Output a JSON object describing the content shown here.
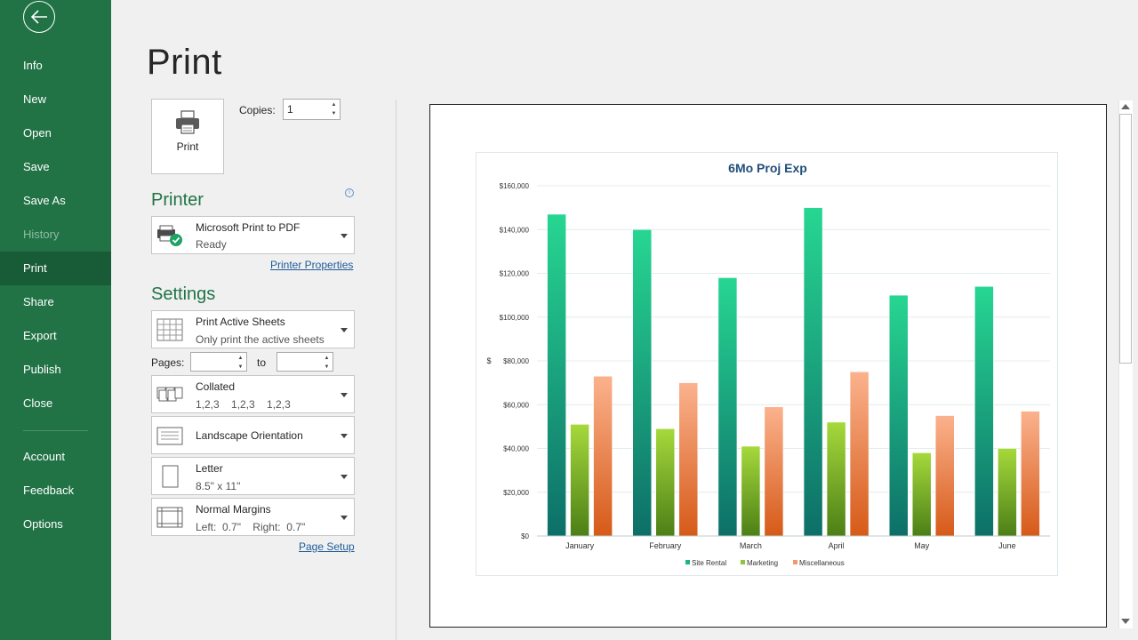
{
  "nav": {
    "items": [
      {
        "label": "Info",
        "state": "normal"
      },
      {
        "label": "New",
        "state": "normal"
      },
      {
        "label": "Open",
        "state": "normal"
      },
      {
        "label": "Save",
        "state": "normal"
      },
      {
        "label": "Save As",
        "state": "normal"
      },
      {
        "label": "History",
        "state": "disabled"
      },
      {
        "label": "Print",
        "state": "active"
      },
      {
        "label": "Share",
        "state": "normal"
      },
      {
        "label": "Export",
        "state": "normal"
      },
      {
        "label": "Publish",
        "state": "normal"
      },
      {
        "label": "Close",
        "state": "normal"
      }
    ],
    "bottom_items": [
      {
        "label": "Account"
      },
      {
        "label": "Feedback"
      },
      {
        "label": "Options"
      }
    ]
  },
  "page_title": "Print",
  "print_button": {
    "label": "Print"
  },
  "copies": {
    "label": "Copies:",
    "value": "1"
  },
  "printer": {
    "heading": "Printer",
    "name": "Microsoft Print to PDF",
    "status": "Ready",
    "properties_link": "Printer Properties"
  },
  "settings": {
    "heading": "Settings",
    "what": {
      "title": "Print Active Sheets",
      "subtitle": "Only print the active sheets"
    },
    "pages": {
      "label": "Pages:",
      "to_label": "to",
      "from": "",
      "to": ""
    },
    "collation": {
      "title": "Collated",
      "subtitle": "1,2,3    1,2,3    1,2,3"
    },
    "orientation": {
      "title": "Landscape Orientation"
    },
    "paper": {
      "title": "Letter",
      "subtitle": "8.5\" x 11\""
    },
    "margins": {
      "title": "Normal Margins",
      "subtitle": "Left:  0.7\"    Right:  0.7\""
    },
    "page_setup_link": "Page Setup"
  },
  "colors": {
    "nav_bg": "#217346",
    "accent": "#217346",
    "site_rental": "#1fb187",
    "marketing": "#8cc63f",
    "miscellaneous": "#f39a6b"
  },
  "chart_data": {
    "type": "bar",
    "title": "6Mo Proj Exp",
    "ylabel": "$",
    "xlabel": "",
    "categories": [
      "January",
      "February",
      "March",
      "April",
      "May",
      "June"
    ],
    "ylim": [
      0,
      160000
    ],
    "yticks": [
      "$0",
      "$20,000",
      "$40,000",
      "$60,000",
      "$80,000",
      "$100,000",
      "$120,000",
      "$140,000",
      "$160,000"
    ],
    "series": [
      {
        "name": "Site Rental",
        "values": [
          147000,
          140000,
          118000,
          150000,
          110000,
          114000
        ]
      },
      {
        "name": "Marketing",
        "values": [
          51000,
          49000,
          41000,
          52000,
          38000,
          40000
        ]
      },
      {
        "name": "Miscellaneous",
        "values": [
          73000,
          70000,
          59000,
          75000,
          55000,
          57000
        ]
      }
    ],
    "legend": "bottom",
    "grid": true
  }
}
